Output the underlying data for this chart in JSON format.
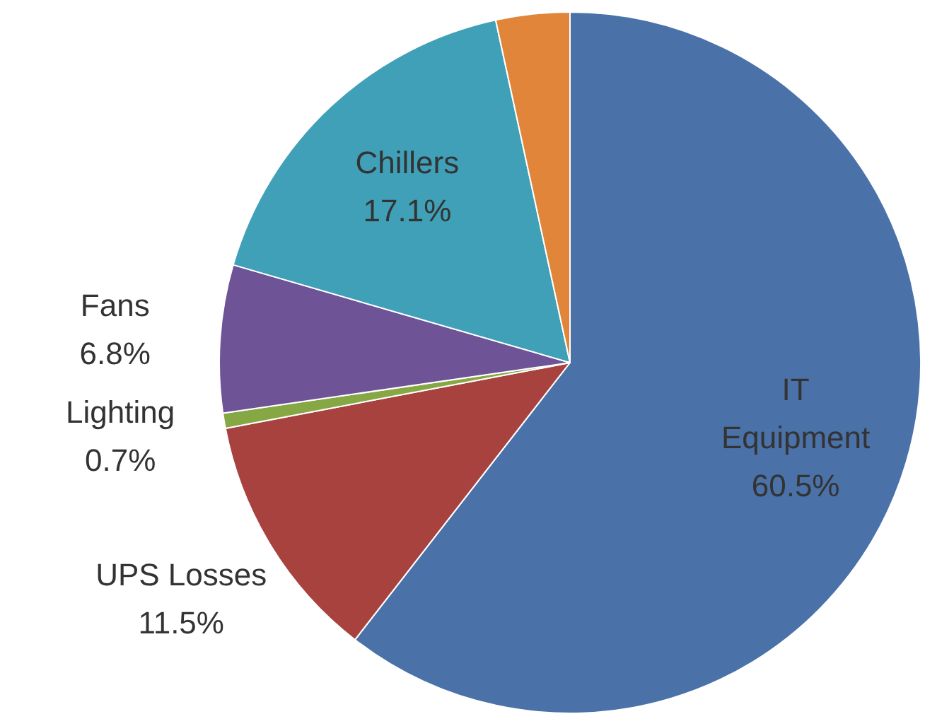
{
  "chart_data": {
    "type": "pie",
    "categories": [
      "IT\nEquipment",
      "UPS Losses",
      "Lighting",
      "Fans",
      "Chillers",
      null
    ],
    "values": [
      60.5,
      11.5,
      0.7,
      6.8,
      17.1,
      3.4
    ],
    "colors": [
      "#4a72a8",
      "#a7423f",
      "#86a844",
      "#6e5396",
      "#3fa0b8",
      "#e08539"
    ],
    "value_labels": [
      "60.5%",
      "11.5%",
      "0.7%",
      "6.8%",
      "17.1%",
      null
    ],
    "legend": false
  }
}
